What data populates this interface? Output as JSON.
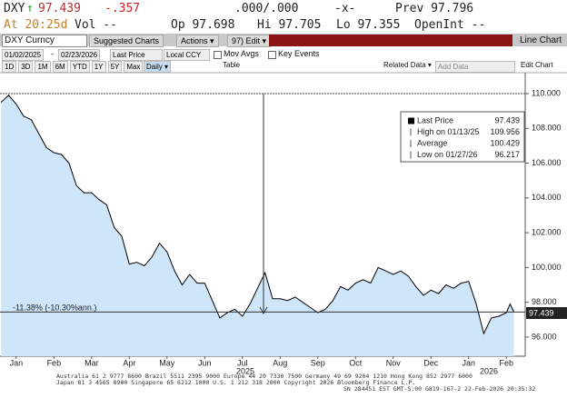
{
  "header": {
    "ticker": "DXY",
    "arrow": "↑",
    "price": "97.439",
    "change": "-.357",
    "bidask": ".000/.000",
    "spread": "-x-",
    "prev": "Prev 97.796",
    "time": "At 20:25d",
    "vol": "Vol --",
    "open": "Op 97.698",
    "high": "Hi 97.705",
    "low": "Lo 97.355",
    "openint": "OpenInt --"
  },
  "toolbar": {
    "security": "DXY Curncy",
    "suggested": "Suggested Charts",
    "actions": "Actions ▾",
    "edit": "97) Edit ▾",
    "chart_type": "Line Chart",
    "start": "01/02/2025",
    "end": "02/23/2026",
    "field": "Last Price",
    "currency": "Local CCY",
    "mov_avgs": "Mov Avgs",
    "key_events": "Key Events",
    "periods": [
      "1D",
      "3D",
      "1M",
      "6M",
      "YTD",
      "1Y",
      "5Y",
      "Max"
    ],
    "frequency": "Daily ▾",
    "table": "Table",
    "related": "Related Data ▾",
    "add": "Add Data",
    "edit_chart": "Edit Chart"
  },
  "chart_data": {
    "type": "line",
    "x": [
      0.1,
      0.3,
      0.5,
      0.7,
      0.9,
      1.1,
      1.3,
      1.5,
      1.7,
      1.9,
      2.1,
      2.3,
      2.5,
      2.7,
      2.9,
      3.1,
      3.3,
      3.5,
      3.7,
      3.9,
      4.1,
      4.3,
      4.5,
      4.7,
      4.9,
      5.1,
      5.3,
      5.5,
      5.7,
      5.9,
      6.1,
      6.3,
      6.5,
      6.7,
      6.9,
      7.1,
      7.3,
      7.5,
      7.7,
      7.9,
      8.1,
      8.3,
      8.5,
      8.7,
      8.9,
      9.1,
      9.3,
      9.5,
      9.7,
      9.9,
      10.1,
      10.3,
      10.5,
      10.7,
      10.9,
      11.1,
      11.3,
      11.5,
      11.7,
      11.9,
      12.1,
      12.3,
      12.5,
      12.7,
      12.9,
      13.1,
      13.3,
      13.5,
      13.6,
      13.7
    ],
    "series": [
      {
        "name": "Last Price",
        "color": "#000000",
        "fill": "#cfe5fa",
        "values": [
          109.5,
          109.9,
          109.4,
          108.7,
          108.5,
          107.7,
          106.9,
          106.6,
          106.5,
          106.0,
          104.7,
          104.3,
          104.3,
          103.9,
          103.6,
          102.3,
          101.8,
          100.2,
          100.3,
          100.1,
          100.6,
          101.4,
          100.9,
          99.8,
          99.0,
          99.6,
          99.1,
          99.1,
          98.1,
          97.1,
          97.4,
          97.6,
          97.2,
          97.9,
          98.8,
          99.7,
          98.2,
          98.2,
          98.1,
          98.3,
          98.0,
          97.7,
          97.4,
          97.6,
          98.1,
          98.9,
          98.7,
          99.1,
          99.3,
          99.1,
          100.0,
          99.8,
          99.6,
          99.8,
          99.5,
          98.9,
          98.4,
          98.7,
          98.5,
          99.0,
          98.8,
          99.1,
          99.2,
          97.9,
          96.2,
          97.1,
          97.2,
          97.4,
          97.9,
          97.439
        ]
      }
    ],
    "xlim": [
      0.07,
      14
    ],
    "ylim": [
      94.9,
      111.2
    ],
    "yticks": [
      {
        "value": 96,
        "label": "96.000"
      },
      {
        "value": 98,
        "label": "98.000"
      },
      {
        "value": 100,
        "label": "100.000"
      },
      {
        "value": 102,
        "label": "102.000"
      },
      {
        "value": 104,
        "label": "104.000"
      },
      {
        "value": 106,
        "label": "106.000"
      },
      {
        "value": 108,
        "label": "108.000"
      },
      {
        "value": 110,
        "label": "110.000"
      }
    ],
    "xticks": [
      {
        "value": 0.5,
        "label": "Jan"
      },
      {
        "value": 1.5,
        "label": "Feb"
      },
      {
        "value": 2.5,
        "label": "Mar"
      },
      {
        "value": 3.5,
        "label": "Apr"
      },
      {
        "value": 4.5,
        "label": "May"
      },
      {
        "value": 5.5,
        "label": "Jun"
      },
      {
        "value": 6.5,
        "label": "Jul"
      },
      {
        "value": 7.5,
        "label": "Aug"
      },
      {
        "value": 8.5,
        "label": "Sep"
      },
      {
        "value": 9.5,
        "label": "Oct"
      },
      {
        "value": 10.5,
        "label": "Nov"
      },
      {
        "value": 11.5,
        "label": "Dec"
      },
      {
        "value": 12.5,
        "label": "Jan"
      },
      {
        "value": 13.5,
        "label": "Feb"
      }
    ],
    "years": [
      "2025",
      "2026"
    ],
    "last_label": "97.439",
    "performance": "-11.38% (-10.30%ann.)",
    "legend": [
      {
        "label": "Last Price",
        "value": "97.439"
      },
      {
        "label": "High on 01/13/25",
        "value": "109.956"
      },
      {
        "label": "Average",
        "value": "100.429"
      },
      {
        "label": "Low on 01/27/26",
        "value": "96.217"
      }
    ]
  },
  "footer": [
    "Australia 61 2 9777 8600 Brazil 5511 2395 9000 Europe 44 20 7330 7500 Germany 49 69 9204 1210 Hong Kong 852 2977 6000",
    "Japan 81 3 4565 8900 Singapore 65 6212 1000 U.S. 1 212 318 2000 Copyright 2026 Bloomberg Finance L.P.",
    "SN 284451 EST GMT-5:00 G819-167-2 22-Feb-2026 20:35:32"
  ]
}
